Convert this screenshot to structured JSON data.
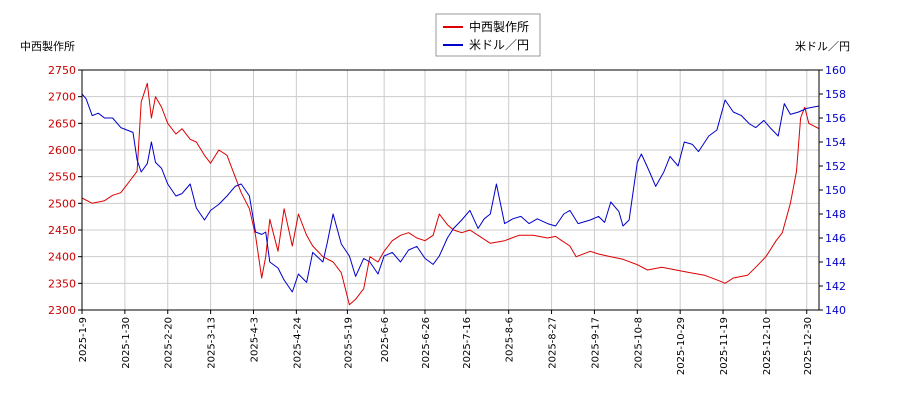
{
  "chart_data": {
    "type": "line",
    "left_axis_title": "中西製作所",
    "right_axis_title": "米ドル／円",
    "legend_position": "top-center",
    "grid": true,
    "y_left": {
      "min": 2300,
      "max": 2750,
      "ticks": [
        "2300",
        "2350",
        "2400",
        "2450",
        "2500",
        "2550",
        "2600",
        "2650",
        "2700",
        "2750"
      ]
    },
    "y_right": {
      "min": 140,
      "max": 160,
      "ticks": [
        "140",
        "142",
        "144",
        "146",
        "148",
        "150",
        "152",
        "154",
        "156",
        "158",
        "160"
      ]
    },
    "x_range": [
      "2025-01-09",
      "2026-01-05"
    ],
    "x_ticks": [
      "2025-1-9",
      "2025-1-30",
      "2025-2-20",
      "2025-3-13",
      "2025-4-3",
      "2025-4-24",
      "2025-5-19",
      "2025-6-6",
      "2025-6-26",
      "2025-7-16",
      "2025-8-6",
      "2025-8-27",
      "2025-9-17",
      "2025-10-8",
      "2025-10-29",
      "2025-11-19",
      "2025-12-10",
      "2025-12-30"
    ],
    "series": [
      {
        "name": "中西製作所",
        "color": "#dd0000",
        "axis": "left",
        "points": [
          [
            "2025-01-09",
            2510
          ],
          [
            "2025-01-14",
            2500
          ],
          [
            "2025-01-20",
            2505
          ],
          [
            "2025-01-24",
            2515
          ],
          [
            "2025-01-28",
            2520
          ],
          [
            "2025-02-01",
            2540
          ],
          [
            "2025-02-05",
            2560
          ],
          [
            "2025-02-07",
            2690
          ],
          [
            "2025-02-10",
            2725
          ],
          [
            "2025-02-12",
            2660
          ],
          [
            "2025-02-14",
            2700
          ],
          [
            "2025-02-17",
            2680
          ],
          [
            "2025-02-20",
            2650
          ],
          [
            "2025-02-24",
            2630
          ],
          [
            "2025-02-27",
            2640
          ],
          [
            "2025-03-03",
            2620
          ],
          [
            "2025-03-06",
            2615
          ],
          [
            "2025-03-10",
            2590
          ],
          [
            "2025-03-13",
            2575
          ],
          [
            "2025-03-17",
            2600
          ],
          [
            "2025-03-21",
            2590
          ],
          [
            "2025-03-25",
            2550
          ],
          [
            "2025-03-28",
            2520
          ],
          [
            "2025-04-01",
            2490
          ],
          [
            "2025-04-04",
            2440
          ],
          [
            "2025-04-07",
            2360
          ],
          [
            "2025-04-09",
            2400
          ],
          [
            "2025-04-11",
            2470
          ],
          [
            "2025-04-15",
            2410
          ],
          [
            "2025-04-18",
            2490
          ],
          [
            "2025-04-22",
            2420
          ],
          [
            "2025-04-25",
            2480
          ],
          [
            "2025-04-29",
            2440
          ],
          [
            "2025-05-02",
            2420
          ],
          [
            "2025-05-07",
            2400
          ],
          [
            "2025-05-12",
            2390
          ],
          [
            "2025-05-16",
            2370
          ],
          [
            "2025-05-20",
            2310
          ],
          [
            "2025-05-23",
            2320
          ],
          [
            "2025-05-27",
            2340
          ],
          [
            "2025-05-30",
            2400
          ],
          [
            "2025-06-03",
            2390
          ],
          [
            "2025-06-06",
            2410
          ],
          [
            "2025-06-10",
            2430
          ],
          [
            "2025-06-14",
            2440
          ],
          [
            "2025-06-18",
            2445
          ],
          [
            "2025-06-22",
            2435
          ],
          [
            "2025-06-26",
            2430
          ],
          [
            "2025-06-30",
            2440
          ],
          [
            "2025-07-03",
            2480
          ],
          [
            "2025-07-07",
            2460
          ],
          [
            "2025-07-10",
            2450
          ],
          [
            "2025-07-14",
            2445
          ],
          [
            "2025-07-18",
            2450
          ],
          [
            "2025-07-22",
            2440
          ],
          [
            "2025-07-28",
            2425
          ],
          [
            "2025-08-04",
            2430
          ],
          [
            "2025-08-11",
            2440
          ],
          [
            "2025-08-18",
            2440
          ],
          [
            "2025-08-25",
            2435
          ],
          [
            "2025-08-29",
            2438
          ],
          [
            "2025-09-01",
            2430
          ],
          [
            "2025-09-05",
            2420
          ],
          [
            "2025-09-08",
            2400
          ],
          [
            "2025-09-15",
            2410
          ],
          [
            "2025-09-19",
            2405
          ],
          [
            "2025-09-25",
            2400
          ],
          [
            "2025-10-01",
            2395
          ],
          [
            "2025-10-08",
            2385
          ],
          [
            "2025-10-13",
            2375
          ],
          [
            "2025-10-20",
            2380
          ],
          [
            "2025-10-27",
            2375
          ],
          [
            "2025-11-03",
            2370
          ],
          [
            "2025-11-10",
            2365
          ],
          [
            "2025-11-17",
            2355
          ],
          [
            "2025-11-20",
            2350
          ],
          [
            "2025-11-24",
            2360
          ],
          [
            "2025-12-01",
            2365
          ],
          [
            "2025-12-05",
            2380
          ],
          [
            "2025-12-10",
            2400
          ],
          [
            "2025-12-15",
            2430
          ],
          [
            "2025-12-18",
            2445
          ],
          [
            "2025-12-22",
            2500
          ],
          [
            "2025-12-25",
            2560
          ],
          [
            "2025-12-27",
            2660
          ],
          [
            "2025-12-29",
            2680
          ],
          [
            "2025-12-31",
            2650
          ],
          [
            "2026-01-05",
            2640
          ]
        ]
      },
      {
        "name": "米ドル／円",
        "color": "#0000cc",
        "axis": "right",
        "points": [
          [
            "2025-01-09",
            158.0
          ],
          [
            "2025-01-11",
            157.6
          ],
          [
            "2025-01-14",
            156.2
          ],
          [
            "2025-01-17",
            156.4
          ],
          [
            "2025-01-20",
            156.0
          ],
          [
            "2025-01-24",
            156.0
          ],
          [
            "2025-01-28",
            155.2
          ],
          [
            "2025-01-31",
            155.0
          ],
          [
            "2025-02-03",
            154.8
          ],
          [
            "2025-02-05",
            152.5
          ],
          [
            "2025-02-07",
            151.5
          ],
          [
            "2025-02-10",
            152.2
          ],
          [
            "2025-02-12",
            154.0
          ],
          [
            "2025-02-14",
            152.3
          ],
          [
            "2025-02-17",
            151.8
          ],
          [
            "2025-02-20",
            150.5
          ],
          [
            "2025-02-24",
            149.5
          ],
          [
            "2025-02-27",
            149.7
          ],
          [
            "2025-03-03",
            150.5
          ],
          [
            "2025-03-06",
            148.5
          ],
          [
            "2025-03-10",
            147.5
          ],
          [
            "2025-03-13",
            148.3
          ],
          [
            "2025-03-17",
            148.8
          ],
          [
            "2025-03-21",
            149.5
          ],
          [
            "2025-03-25",
            150.3
          ],
          [
            "2025-03-28",
            150.5
          ],
          [
            "2025-04-01",
            149.5
          ],
          [
            "2025-04-04",
            146.5
          ],
          [
            "2025-04-07",
            146.3
          ],
          [
            "2025-04-09",
            146.5
          ],
          [
            "2025-04-11",
            144.0
          ],
          [
            "2025-04-15",
            143.5
          ],
          [
            "2025-04-18",
            142.5
          ],
          [
            "2025-04-22",
            141.5
          ],
          [
            "2025-04-25",
            143.0
          ],
          [
            "2025-04-29",
            142.3
          ],
          [
            "2025-05-02",
            144.8
          ],
          [
            "2025-05-07",
            144.0
          ],
          [
            "2025-05-09",
            145.5
          ],
          [
            "2025-05-12",
            148.0
          ],
          [
            "2025-05-16",
            145.5
          ],
          [
            "2025-05-20",
            144.5
          ],
          [
            "2025-05-23",
            142.8
          ],
          [
            "2025-05-27",
            144.3
          ],
          [
            "2025-05-30",
            144.0
          ],
          [
            "2025-06-03",
            143.0
          ],
          [
            "2025-06-06",
            144.5
          ],
          [
            "2025-06-10",
            144.8
          ],
          [
            "2025-06-14",
            144.0
          ],
          [
            "2025-06-18",
            145.0
          ],
          [
            "2025-06-22",
            145.3
          ],
          [
            "2025-06-26",
            144.3
          ],
          [
            "2025-06-30",
            143.8
          ],
          [
            "2025-07-03",
            144.5
          ],
          [
            "2025-07-07",
            146.0
          ],
          [
            "2025-07-10",
            146.8
          ],
          [
            "2025-07-14",
            147.5
          ],
          [
            "2025-07-18",
            148.3
          ],
          [
            "2025-07-22",
            146.8
          ],
          [
            "2025-07-25",
            147.6
          ],
          [
            "2025-07-28",
            148.0
          ],
          [
            "2025-07-31",
            150.5
          ],
          [
            "2025-08-04",
            147.2
          ],
          [
            "2025-08-08",
            147.6
          ],
          [
            "2025-08-12",
            147.8
          ],
          [
            "2025-08-16",
            147.2
          ],
          [
            "2025-08-20",
            147.6
          ],
          [
            "2025-08-25",
            147.2
          ],
          [
            "2025-08-29",
            147.0
          ],
          [
            "2025-09-02",
            148.0
          ],
          [
            "2025-09-05",
            148.3
          ],
          [
            "2025-09-09",
            147.2
          ],
          [
            "2025-09-15",
            147.5
          ],
          [
            "2025-09-19",
            147.8
          ],
          [
            "2025-09-22",
            147.3
          ],
          [
            "2025-09-25",
            149.0
          ],
          [
            "2025-09-29",
            148.2
          ],
          [
            "2025-10-01",
            147.0
          ],
          [
            "2025-10-04",
            147.5
          ],
          [
            "2025-10-08",
            152.3
          ],
          [
            "2025-10-10",
            153.0
          ],
          [
            "2025-10-14",
            151.5
          ],
          [
            "2025-10-17",
            150.3
          ],
          [
            "2025-10-21",
            151.5
          ],
          [
            "2025-10-24",
            152.8
          ],
          [
            "2025-10-28",
            152.0
          ],
          [
            "2025-10-31",
            154.0
          ],
          [
            "2025-11-04",
            153.8
          ],
          [
            "2025-11-07",
            153.2
          ],
          [
            "2025-11-12",
            154.5
          ],
          [
            "2025-11-16",
            155.0
          ],
          [
            "2025-11-20",
            157.5
          ],
          [
            "2025-11-24",
            156.5
          ],
          [
            "2025-11-28",
            156.2
          ],
          [
            "2025-12-02",
            155.5
          ],
          [
            "2025-12-05",
            155.2
          ],
          [
            "2025-12-09",
            155.8
          ],
          [
            "2025-12-12",
            155.2
          ],
          [
            "2025-12-16",
            154.5
          ],
          [
            "2025-12-19",
            157.2
          ],
          [
            "2025-12-22",
            156.3
          ],
          [
            "2025-12-26",
            156.5
          ],
          [
            "2025-12-30",
            156.8
          ],
          [
            "2026-01-05",
            157.0
          ]
        ]
      }
    ]
  }
}
